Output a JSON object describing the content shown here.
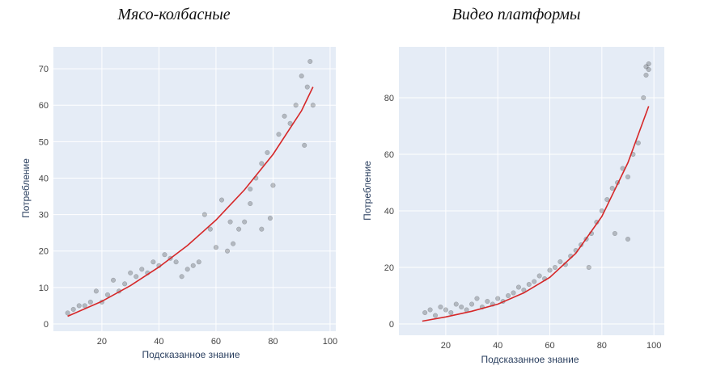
{
  "chart_data": [
    {
      "type": "scatter",
      "title": "Мясо-колбасные",
      "xlabel": "Подсказанное знание",
      "ylabel": "Потребление",
      "xlim": [
        3,
        102
      ],
      "ylim": [
        -2,
        76
      ],
      "xticks": [
        20,
        40,
        60,
        80,
        100
      ],
      "yticks": [
        0,
        10,
        20,
        30,
        40,
        50,
        60,
        70
      ],
      "series": [
        {
          "name": "observations",
          "points": [
            [
              8,
              3
            ],
            [
              10,
              4
            ],
            [
              12,
              5
            ],
            [
              14,
              5
            ],
            [
              16,
              6
            ],
            [
              18,
              9
            ],
            [
              20,
              6
            ],
            [
              22,
              8
            ],
            [
              24,
              12
            ],
            [
              26,
              9
            ],
            [
              28,
              11
            ],
            [
              30,
              14
            ],
            [
              32,
              13
            ],
            [
              34,
              15
            ],
            [
              36,
              14
            ],
            [
              38,
              17
            ],
            [
              40,
              16
            ],
            [
              42,
              19
            ],
            [
              44,
              18
            ],
            [
              46,
              17
            ],
            [
              48,
              13
            ],
            [
              50,
              15
            ],
            [
              52,
              16
            ],
            [
              54,
              17
            ],
            [
              56,
              30
            ],
            [
              58,
              26
            ],
            [
              60,
              21
            ],
            [
              62,
              34
            ],
            [
              64,
              20
            ],
            [
              66,
              22
            ],
            [
              68,
              26
            ],
            [
              70,
              28
            ],
            [
              72,
              37
            ],
            [
              74,
              40
            ],
            [
              76,
              44
            ],
            [
              78,
              47
            ],
            [
              80,
              38
            ],
            [
              82,
              52
            ],
            [
              84,
              57
            ],
            [
              86,
              55
            ],
            [
              88,
              60
            ],
            [
              90,
              68
            ],
            [
              92,
              65
            ],
            [
              94,
              60
            ],
            [
              93,
              72
            ],
            [
              91,
              49
            ],
            [
              79,
              29
            ],
            [
              76,
              26
            ],
            [
              72,
              33
            ],
            [
              65,
              28
            ]
          ]
        },
        {
          "name": "fit",
          "points": [
            [
              8,
              2.1
            ],
            [
              20,
              6.2
            ],
            [
              30,
              10.5
            ],
            [
              40,
              15.6
            ],
            [
              50,
              21.5
            ],
            [
              60,
              28.5
            ],
            [
              70,
              36.8
            ],
            [
              80,
              46.5
            ],
            [
              90,
              58.5
            ],
            [
              94,
              65
            ]
          ]
        }
      ]
    },
    {
      "type": "scatter",
      "title": "Видео платформы",
      "xlabel": "Подсказанное знание",
      "ylabel": "Потребление",
      "xlim": [
        2,
        104
      ],
      "ylim": [
        -4,
        98
      ],
      "xticks": [
        20,
        40,
        60,
        80,
        100
      ],
      "yticks": [
        0,
        20,
        40,
        60,
        80
      ],
      "series": [
        {
          "name": "observations",
          "points": [
            [
              12,
              4
            ],
            [
              14,
              5
            ],
            [
              16,
              3
            ],
            [
              18,
              6
            ],
            [
              20,
              5
            ],
            [
              22,
              4
            ],
            [
              24,
              7
            ],
            [
              26,
              6
            ],
            [
              28,
              5
            ],
            [
              30,
              7
            ],
            [
              32,
              9
            ],
            [
              34,
              6
            ],
            [
              36,
              8
            ],
            [
              38,
              7
            ],
            [
              40,
              9
            ],
            [
              42,
              8
            ],
            [
              44,
              10
            ],
            [
              46,
              11
            ],
            [
              48,
              13
            ],
            [
              50,
              12
            ],
            [
              52,
              14
            ],
            [
              54,
              15
            ],
            [
              56,
              17
            ],
            [
              58,
              16
            ],
            [
              60,
              19
            ],
            [
              62,
              20
            ],
            [
              64,
              22
            ],
            [
              66,
              21
            ],
            [
              68,
              24
            ],
            [
              70,
              26
            ],
            [
              72,
              28
            ],
            [
              74,
              30
            ],
            [
              76,
              32
            ],
            [
              78,
              36
            ],
            [
              80,
              40
            ],
            [
              82,
              44
            ],
            [
              84,
              48
            ],
            [
              86,
              50
            ],
            [
              88,
              55
            ],
            [
              90,
              52
            ],
            [
              92,
              60
            ],
            [
              94,
              64
            ],
            [
              96,
              80
            ],
            [
              97,
              88
            ],
            [
              97,
              91
            ],
            [
              98,
              92
            ],
            [
              98,
              90
            ],
            [
              85,
              32
            ],
            [
              90,
              30
            ],
            [
              75,
              20
            ]
          ]
        },
        {
          "name": "fit",
          "points": [
            [
              11,
              1
            ],
            [
              20,
              2.5
            ],
            [
              30,
              4.5
            ],
            [
              40,
              7
            ],
            [
              50,
              11
            ],
            [
              60,
              16.5
            ],
            [
              70,
              25
            ],
            [
              80,
              38
            ],
            [
              90,
              57
            ],
            [
              98,
              77
            ]
          ]
        }
      ]
    }
  ]
}
